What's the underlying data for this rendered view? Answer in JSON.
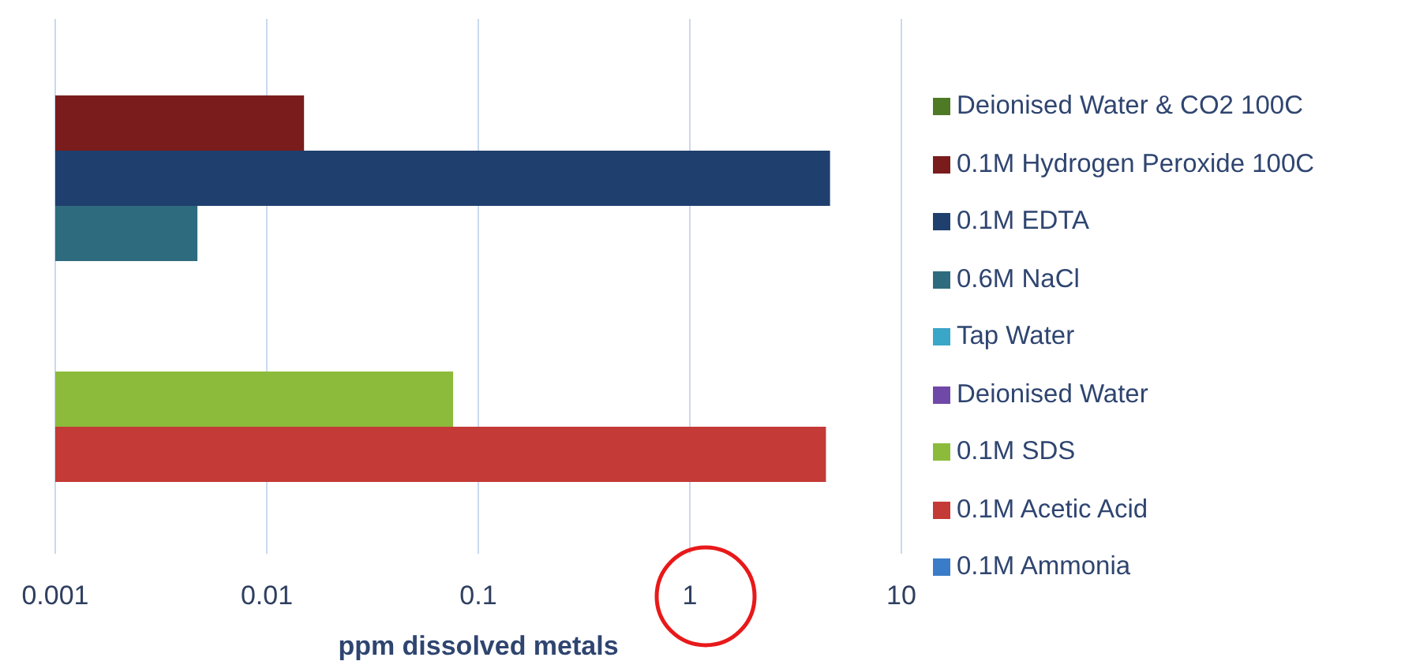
{
  "chart_data": {
    "type": "bar",
    "orientation": "horizontal",
    "xlabel": "ppm dissolved metals",
    "categories": [
      null
    ],
    "series": [
      {
        "name": "Deionised Water & CO2 100C",
        "color": "#4e7a25",
        "values": [
          null
        ]
      },
      {
        "name": "0.1M Hydrogen Peroxide 100C",
        "color": "#7a1c1c",
        "values": [
          0.015
        ]
      },
      {
        "name": "0.1M EDTA",
        "color": "#1f3f6e",
        "values": [
          4.6
        ]
      },
      {
        "name": "0.6M NaCl",
        "color": "#2e6b7e",
        "values": [
          0.0047
        ]
      },
      {
        "name": "Tap Water",
        "color": "#3aa6c8",
        "values": [
          null
        ]
      },
      {
        "name": "Deionised Water",
        "color": "#7048a8",
        "values": [
          null
        ]
      },
      {
        "name": "0.1M SDS",
        "color": "#8cbb3c",
        "values": [
          0.076
        ]
      },
      {
        "name": "0.1M Acetic Acid",
        "color": "#c43a36",
        "values": [
          4.4
        ]
      },
      {
        "name": "0.1M Ammonia",
        "color": "#3a7cc8",
        "values": [
          null
        ]
      }
    ],
    "xlim": [
      0.001,
      10
    ],
    "xticks": [
      0.001,
      0.01,
      0.1,
      1,
      10
    ],
    "log": "x",
    "grid": "x",
    "legend": "right"
  }
}
